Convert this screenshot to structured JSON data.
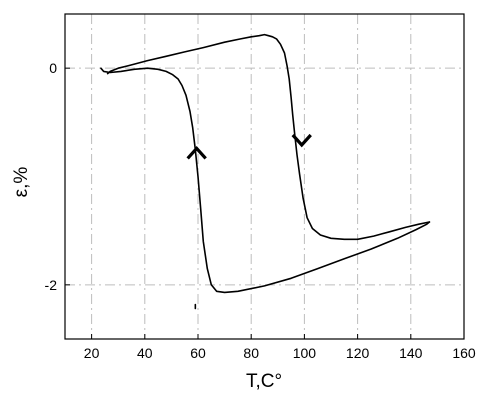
{
  "chart_data": {
    "type": "line",
    "title": "",
    "xlabel": "T,C°",
    "ylabel": "ε,%",
    "xlim": [
      10,
      160
    ],
    "ylim": [
      -2.5,
      0.5
    ],
    "x_ticks": [
      20,
      40,
      60,
      80,
      100,
      120,
      140,
      160
    ],
    "x_tick_labels": [
      "20",
      "40",
      "60",
      "80",
      "100",
      "120",
      "140",
      "160"
    ],
    "y_ticks": [
      -2,
      0
    ],
    "y_tick_labels": [
      "-2",
      "0"
    ],
    "grid": true,
    "legend": "none",
    "series": [
      {
        "x": [
          147,
          143,
          138,
          132,
          126,
          120,
          115,
          110,
          106,
          103,
          101,
          99.5,
          98.2,
          97.2,
          96.3,
          95.6,
          95.0,
          94.3,
          93.5,
          92.5,
          91.0,
          89.5,
          88.0,
          86.5,
          85.0,
          83.0,
          80.0,
          76.0,
          70.0,
          62.0,
          55.0,
          48.0,
          41.0,
          35.0,
          30.0,
          27.0,
          26.0
        ],
        "y": [
          -1.42,
          -1.44,
          -1.47,
          -1.51,
          -1.55,
          -1.58,
          -1.58,
          -1.57,
          -1.54,
          -1.48,
          -1.38,
          -1.2,
          -0.98,
          -0.8,
          -0.6,
          -0.43,
          -0.27,
          -0.1,
          0.02,
          0.14,
          0.22,
          0.27,
          0.29,
          0.3,
          0.31,
          0.3,
          0.29,
          0.27,
          0.24,
          0.19,
          0.15,
          0.11,
          0.07,
          0.03,
          0.0,
          -0.03,
          -0.05
        ]
      },
      {
        "x": [
          23.5,
          24.5,
          27.0,
          31.0,
          36.0,
          41.0,
          45.0,
          48.0,
          50.5,
          52.5,
          54.0,
          55.5,
          57.0,
          58.0,
          59.0,
          60.0,
          61.0,
          62.0,
          63.5,
          65.0,
          67.0,
          70.0,
          75.0,
          85.0,
          95.0,
          105.0,
          115.0,
          125.0,
          135.0,
          142.0,
          146.0,
          147.0
        ],
        "y": [
          0.0,
          -0.03,
          -0.04,
          -0.03,
          -0.01,
          0.0,
          -0.01,
          -0.03,
          -0.06,
          -0.1,
          -0.16,
          -0.25,
          -0.4,
          -0.55,
          -0.75,
          -1.0,
          -1.3,
          -1.6,
          -1.85,
          -2.0,
          -2.06,
          -2.07,
          -2.06,
          -2.01,
          -1.94,
          -1.85,
          -1.76,
          -1.67,
          -1.57,
          -1.49,
          -1.44,
          -1.42
        ]
      }
    ],
    "annotations": [
      {
        "type": "arrow",
        "direction": "down",
        "x": 99,
        "y": -0.7
      },
      {
        "type": "arrow",
        "direction": "up",
        "x": 59.5,
        "y": -0.75
      },
      {
        "type": "mark",
        "x": 59,
        "y": -2.2
      }
    ]
  }
}
